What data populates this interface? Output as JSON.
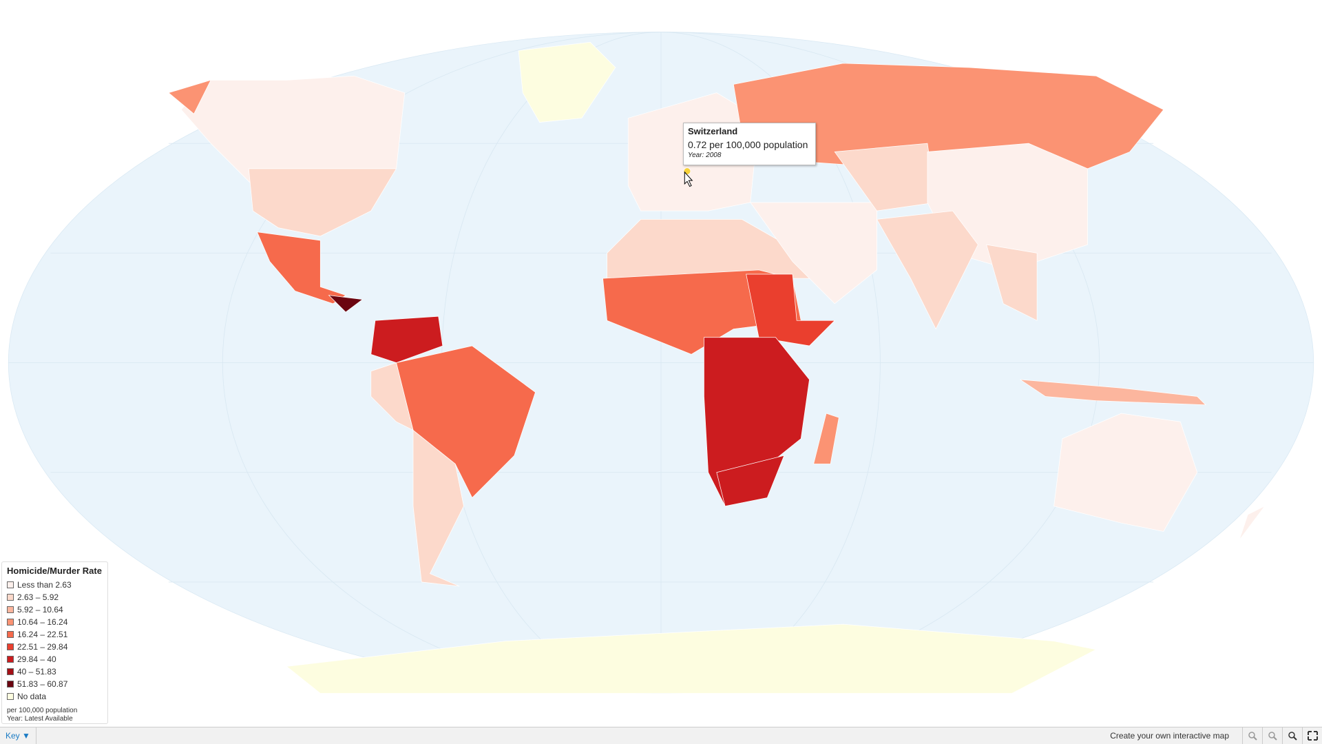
{
  "tooltip": {
    "country": "Switzerland",
    "value": "0.72 per 100,000 population",
    "year": "Year: 2008"
  },
  "legend": {
    "title": "Homicide/Murder Rate",
    "items": [
      {
        "label": "Less than 2.63",
        "color": "#fdf0ec"
      },
      {
        "label": "2.63 – 5.92",
        "color": "#fcd9cb"
      },
      {
        "label": "5.92 – 10.64",
        "color": "#fcb69e"
      },
      {
        "label": "10.64 – 16.24",
        "color": "#fb9373"
      },
      {
        "label": "16.24 – 22.51",
        "color": "#f66a4c"
      },
      {
        "label": "22.51 – 29.84",
        "color": "#ea3f2e"
      },
      {
        "label": "29.84 – 40",
        "color": "#cc1c1f"
      },
      {
        "label": "40 – 51.83",
        "color": "#a50f15"
      },
      {
        "label": "51.83 – 60.87",
        "color": "#6b0510"
      },
      {
        "label": "No data",
        "color": "#fdfde0"
      }
    ],
    "notes": [
      "per 100,000 population",
      "Year: Latest Available"
    ]
  },
  "footer": {
    "key": "Key ▼",
    "link": "Create your own interactive map"
  }
}
